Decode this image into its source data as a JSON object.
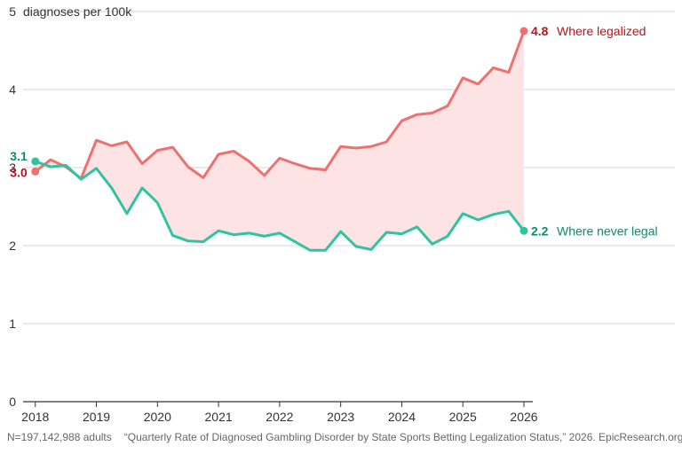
{
  "chart_data": {
    "type": "line",
    "unit_label": "diagnoses per 100k",
    "ylim": [
      0,
      5
    ],
    "yticks": [
      0,
      1,
      2,
      3,
      4,
      5
    ],
    "xlim": [
      2017.8,
      2026
    ],
    "xticks": [
      2018,
      2019,
      2020,
      2021,
      2022,
      2023,
      2024,
      2025,
      2026
    ],
    "grid": true,
    "fill_between": true,
    "series": [
      {
        "name": "Where legalized",
        "color": "#f07070",
        "label_color": "#c0101c",
        "start_label": "3.0",
        "end_label": "4.8",
        "x": [
          2018.0,
          2018.25,
          2018.5,
          2018.75,
          2019.0,
          2019.25,
          2019.5,
          2019.75,
          2020.0,
          2020.25,
          2020.5,
          2020.75,
          2021.0,
          2021.25,
          2021.5,
          2021.75,
          2022.0,
          2022.25,
          2022.5,
          2022.75,
          2023.0,
          2023.25,
          2023.5,
          2023.75,
          2024.0,
          2024.25,
          2024.5,
          2024.75,
          2025.0,
          2025.25,
          2025.5,
          2025.75,
          2026.0
        ],
        "values": [
          2.95,
          3.1,
          3.01,
          2.86,
          3.35,
          3.28,
          3.33,
          3.05,
          3.22,
          3.26,
          3.01,
          2.87,
          3.17,
          3.21,
          3.08,
          2.9,
          3.12,
          3.05,
          2.99,
          2.97,
          3.27,
          3.25,
          3.27,
          3.33,
          3.6,
          3.68,
          3.7,
          3.79,
          4.15,
          4.07,
          4.28,
          4.22,
          4.75
        ]
      },
      {
        "name": "Where never legal",
        "color": "#2ec4a0",
        "label_color": "#0f8a6a",
        "start_label": "3.1",
        "end_label": "2.2",
        "x": [
          2018.0,
          2018.25,
          2018.5,
          2018.75,
          2019.0,
          2019.25,
          2019.5,
          2019.75,
          2020.0,
          2020.25,
          2020.5,
          2020.75,
          2021.0,
          2021.25,
          2021.5,
          2021.75,
          2022.0,
          2022.25,
          2022.5,
          2022.75,
          2023.0,
          2023.25,
          2023.5,
          2023.75,
          2024.0,
          2024.25,
          2024.5,
          2024.75,
          2025.0,
          2025.25,
          2025.5,
          2025.75,
          2026.0
        ],
        "values": [
          3.08,
          3.01,
          3.03,
          2.85,
          2.99,
          2.74,
          2.41,
          2.74,
          2.55,
          2.13,
          2.06,
          2.05,
          2.19,
          2.14,
          2.16,
          2.12,
          2.16,
          2.05,
          1.94,
          1.94,
          2.18,
          1.99,
          1.95,
          2.17,
          2.15,
          2.24,
          2.02,
          2.12,
          2.41,
          2.33,
          2.4,
          2.44,
          2.19
        ]
      }
    ]
  },
  "footer": {
    "sample": "N=197,142,988 adults",
    "source": "“Quarterly Rate of Diagnosed Gambling Disorder by State Sports Betting Legalization Status,” 2026. EpicResearch.org"
  }
}
